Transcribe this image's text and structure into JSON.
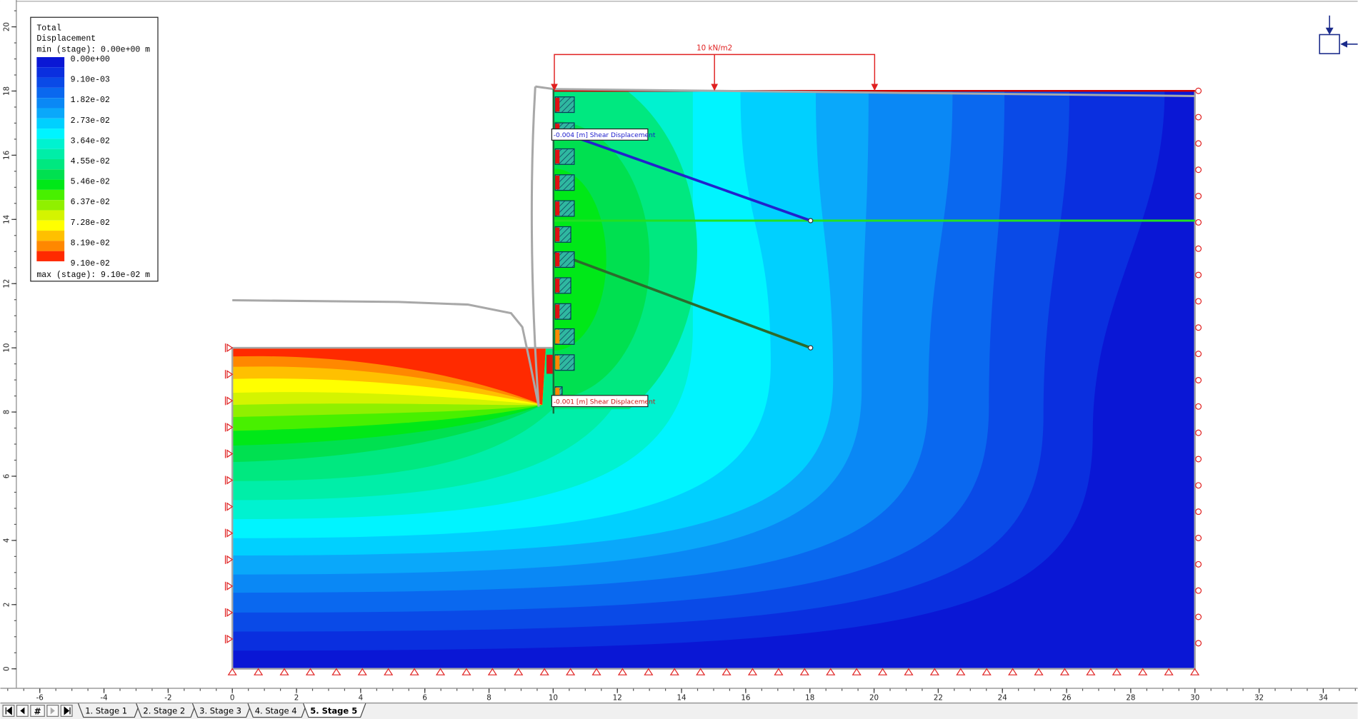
{
  "legend": {
    "title": [
      "Total",
      "Displacement"
    ],
    "min": "min (stage): 0.00e+00 m",
    "labels": [
      "0.00e+00",
      "9.10e-03",
      "1.82e-02",
      "2.73e-02",
      "3.64e-02",
      "4.55e-02",
      "5.46e-02",
      "6.37e-02",
      "7.28e-02",
      "8.19e-02",
      "9.10e-02"
    ],
    "colors": [
      "#0a17d5",
      "#0a2fdf",
      "#0a4ae7",
      "#0a68ef",
      "#0a88f5",
      "#0aa8fa",
      "#00d0ff",
      "#00f4ff",
      "#00f2d0",
      "#00eea8",
      "#00e880",
      "#00e050",
      "#00e818",
      "#48f000",
      "#90f000",
      "#d4f400",
      "#ffff00",
      "#ffc000",
      "#ff8800",
      "#ff2a00"
    ],
    "max": "max (stage): 9.10e-02 m"
  },
  "load": {
    "label": "10 kN/m2"
  },
  "annotations": [
    {
      "text": "-0.004 [m] Shear Displacement"
    },
    {
      "text": "-0.001 [m] Shear Displacement"
    }
  ],
  "axes": {
    "x_ticks": [
      -6,
      -4,
      -2,
      0,
      2,
      4,
      6,
      8,
      10,
      12,
      14,
      16,
      18,
      20,
      22,
      24,
      26,
      28,
      30,
      32,
      34
    ],
    "y_ticks": [
      0,
      2,
      4,
      6,
      8,
      10,
      12,
      14,
      16,
      18,
      20
    ]
  },
  "nav": {
    "jump": "#"
  },
  "tabs": [
    "1. Stage 1",
    "2. Stage 2",
    "3. Stage 3",
    "4. Stage 4",
    "5. Stage 5"
  ]
}
